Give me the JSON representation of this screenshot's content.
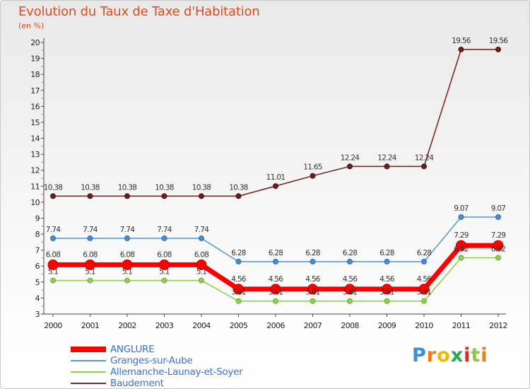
{
  "header": {
    "title": "Evolution du Taux de Taxe d'Habitation",
    "subtitle": "(en %)"
  },
  "chart_data": {
    "type": "line",
    "title": "Evolution du Taux de Taxe d'Habitation",
    "ylabel": "(en %)",
    "xlabel": "",
    "ylim": [
      3,
      20
    ],
    "yticks": [
      3,
      4,
      5,
      6,
      7,
      8,
      9,
      10,
      11,
      12,
      13,
      14,
      15,
      16,
      17,
      18,
      19,
      20
    ],
    "categories": [
      "2000",
      "2001",
      "2002",
      "2003",
      "2004",
      "2005",
      "2006",
      "2007",
      "2008",
      "2009",
      "2010",
      "2011",
      "2012"
    ],
    "grid": false,
    "legend_position": "bottom-left",
    "series": [
      {
        "name": "ANGLURE",
        "color": "#ff0000",
        "values": [
          6.08,
          6.08,
          6.08,
          6.08,
          6.08,
          4.56,
          4.56,
          4.56,
          4.56,
          4.56,
          4.56,
          7.29,
          7.29
        ]
      },
      {
        "name": "Granges-sur-Aube",
        "color": "#5b9bd5",
        "values": [
          7.74,
          7.74,
          7.74,
          7.74,
          7.74,
          6.28,
          6.28,
          6.28,
          6.28,
          6.28,
          6.28,
          9.07,
          9.07
        ]
      },
      {
        "name": "Allemanche-Launay-et-Soyer",
        "color": "#92d050",
        "values": [
          5.1,
          5.1,
          5.1,
          5.1,
          5.1,
          3.81,
          3.81,
          3.81,
          3.81,
          3.81,
          3.81,
          6.52,
          6.52
        ]
      },
      {
        "name": "Baudement",
        "color": "#7b2a2a",
        "values": [
          10.38,
          10.38,
          10.38,
          10.38,
          10.38,
          10.38,
          11.01,
          11.65,
          12.24,
          12.24,
          12.24,
          19.56,
          19.56
        ]
      }
    ],
    "label_texts": {
      "ANGLURE": [
        "6.08",
        "6.08",
        "6.08",
        "6.08",
        "6.08",
        "4.56",
        "4.56",
        "4.56",
        "4.56",
        "4.56",
        "4.56",
        "7.29",
        "7.29"
      ],
      "Granges-sur-Aube": [
        "7.74",
        "7.74",
        "7.74",
        "7.74",
        "7.74",
        "6.28",
        "6.28",
        "6.28",
        "6.28",
        "6.28",
        "6.28",
        "9.07",
        "9.07"
      ],
      "Allemanche-Launay-et-Soyer": [
        "5.1",
        "5.1",
        "5.1",
        "5.1",
        "5.1",
        "3.81",
        "3.81",
        "3.81",
        "3.81",
        "3.81",
        "3.81",
        "6.52",
        "6.52"
      ],
      "Baudement": [
        "10.38",
        "10.38",
        "10.38",
        "10.38",
        "10.38",
        "10.38",
        "11.01",
        "11.65",
        "12.24",
        "12.24",
        "12.24",
        "19.56",
        "19.56"
      ]
    }
  },
  "legend": {
    "items": [
      {
        "label": "ANGLURE",
        "color": "#ff0000"
      },
      {
        "label": "Granges-sur-Aube",
        "color": "#5b9bd5"
      },
      {
        "label": "Allemanche-Launay-et-Soyer",
        "color": "#92d050"
      },
      {
        "label": "Baudement",
        "color": "#7b2a2a"
      }
    ]
  },
  "logo": {
    "letters": [
      "P",
      "r",
      "o",
      "x",
      "i",
      "t",
      "i"
    ],
    "colors": [
      "#3a8fd9",
      "#f07d1a",
      "#f2b705",
      "#2aa84a",
      "#d92b2b",
      "#8fc63f",
      "#f07d1a"
    ]
  }
}
